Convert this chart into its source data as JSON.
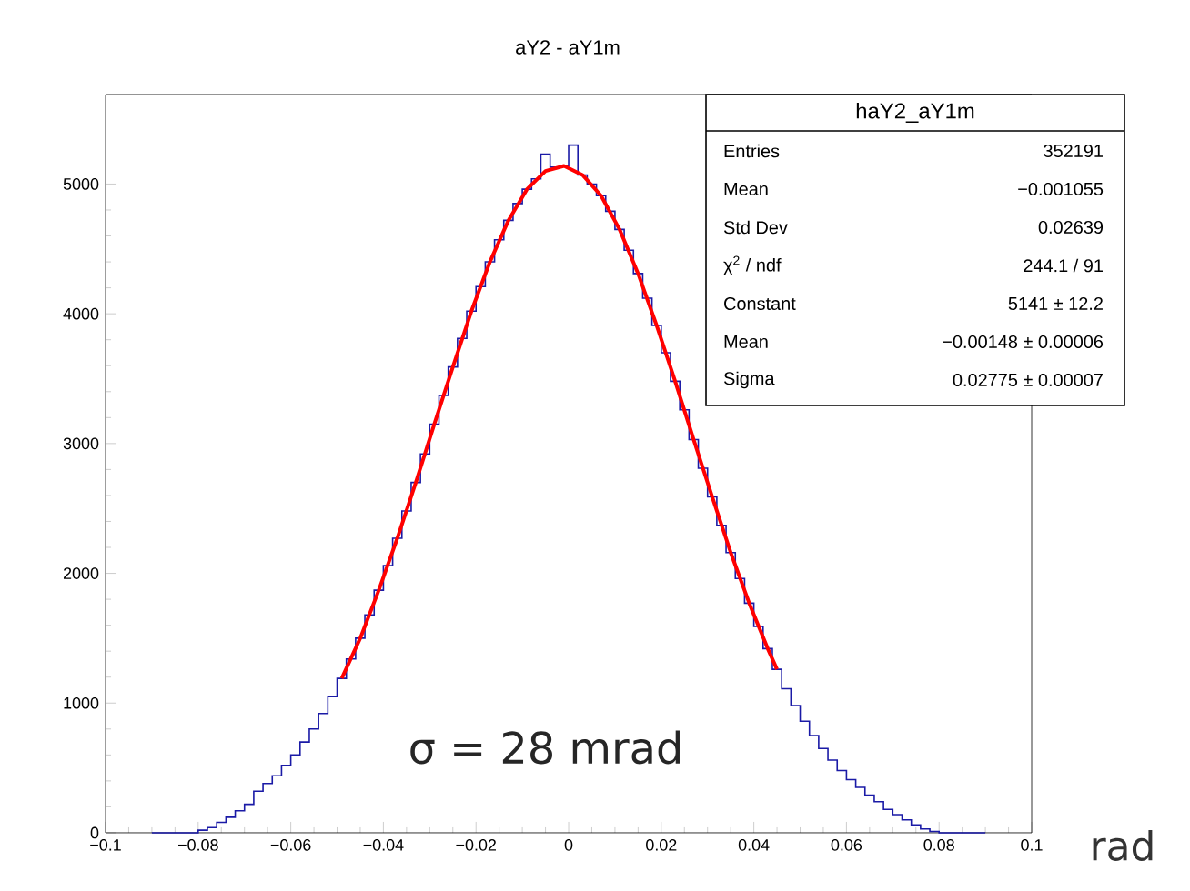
{
  "chart_data": {
    "type": "histogram",
    "title": "aY2 - aY1m",
    "xlabel": "rad",
    "xlim": [
      -0.1,
      0.1
    ],
    "ylim": [
      0,
      5690
    ],
    "xticks": [
      {
        "value": -0.1,
        "label": "−0.1"
      },
      {
        "value": -0.08,
        "label": "−0.08"
      },
      {
        "value": -0.06,
        "label": "−0.06"
      },
      {
        "value": -0.04,
        "label": "−0.04"
      },
      {
        "value": -0.02,
        "label": "−0.02"
      },
      0,
      0.02,
      0.04,
      0.06,
      0.08,
      0.1
    ],
    "yticks": [
      0,
      1000,
      2000,
      3000,
      4000,
      5000
    ],
    "grid": false,
    "series": [
      {
        "color": "#1a1aa6",
        "bins": [
          -0.09,
          -0.088,
          -0.086,
          -0.084,
          -0.082,
          -0.08,
          -0.078,
          -0.076,
          -0.074,
          -0.072,
          -0.07,
          -0.068,
          -0.066,
          -0.064,
          -0.062,
          -0.06,
          -0.058,
          -0.056,
          -0.054,
          -0.052,
          -0.05,
          -0.048,
          -0.046,
          -0.044,
          -0.042,
          -0.04,
          -0.038,
          -0.036,
          -0.034,
          -0.032,
          -0.03,
          -0.028,
          -0.026,
          -0.024,
          -0.022,
          -0.02,
          -0.018,
          -0.016,
          -0.014,
          -0.012,
          -0.01,
          -0.008,
          -0.006,
          -0.004,
          -0.002,
          0,
          0.002,
          0.004,
          0.006,
          0.008,
          0.01,
          0.012,
          0.014,
          0.016,
          0.018,
          0.02,
          0.022,
          0.024,
          0.026,
          0.028,
          0.03,
          0.032,
          0.034,
          0.036,
          0.038,
          0.04,
          0.042,
          0.044,
          0.046,
          0.048,
          0.05,
          0.052,
          0.054,
          0.056,
          0.058,
          0.06,
          0.062,
          0.064,
          0.066,
          0.068,
          0.07,
          0.072,
          0.074,
          0.076,
          0.078,
          0.08,
          0.082,
          0.084,
          0.086,
          0.088,
          0.09
        ],
        "values": [
          0,
          0,
          0,
          0,
          0,
          20,
          40,
          80,
          120,
          170,
          220,
          320,
          380,
          440,
          520,
          600,
          700,
          800,
          920,
          1050,
          1190,
          1340,
          1500,
          1680,
          1870,
          2060,
          2270,
          2480,
          2700,
          2920,
          3150,
          3370,
          3590,
          3810,
          4020,
          4210,
          4400,
          4570,
          4720,
          4850,
          4960,
          5040,
          5230,
          5130,
          5140,
          5300,
          5070,
          5000,
          4910,
          4790,
          4650,
          4490,
          4310,
          4120,
          3910,
          3700,
          3480,
          3260,
          3030,
          2810,
          2590,
          2370,
          2160,
          1960,
          1770,
          1590,
          1420,
          1260,
          1110,
          980,
          860,
          750,
          650,
          560,
          480,
          410,
          350,
          290,
          240,
          180,
          140,
          100,
          60,
          30,
          10,
          0,
          0,
          0,
          0,
          0
        ]
      },
      {
        "type": "line",
        "color": "#ff0000",
        "x": [
          -0.049,
          -0.045,
          -0.041,
          -0.037,
          -0.033,
          -0.029,
          -0.025,
          -0.021,
          -0.017,
          -0.013,
          -0.009,
          -0.005,
          -0.001,
          0.003,
          0.007,
          0.011,
          0.015,
          0.019,
          0.023,
          0.027,
          0.031,
          0.035,
          0.039,
          0.043,
          0.045
        ],
        "values": [
          1190,
          1500,
          1870,
          2270,
          2700,
          3150,
          3590,
          4020,
          4400,
          4720,
          4960,
          5100,
          5140,
          5070,
          4910,
          4650,
          4310,
          3910,
          3480,
          3030,
          2590,
          2160,
          1770,
          1420,
          1260
        ]
      }
    ],
    "annotations": [
      "haY2_aY1m",
      "Entries",
      "352191",
      "Mean",
      "−0.001055",
      "Std Dev",
      "0.02639",
      "χ$^{2}$ / ndf",
      "244.1 / 91",
      "Constant",
      "5141 ± 12.2",
      "Mean",
      "−0.00148 ± 0.00006",
      "Sigma",
      "0.02775 ± 0.00007",
      "σ = 28 mrad"
    ]
  }
}
